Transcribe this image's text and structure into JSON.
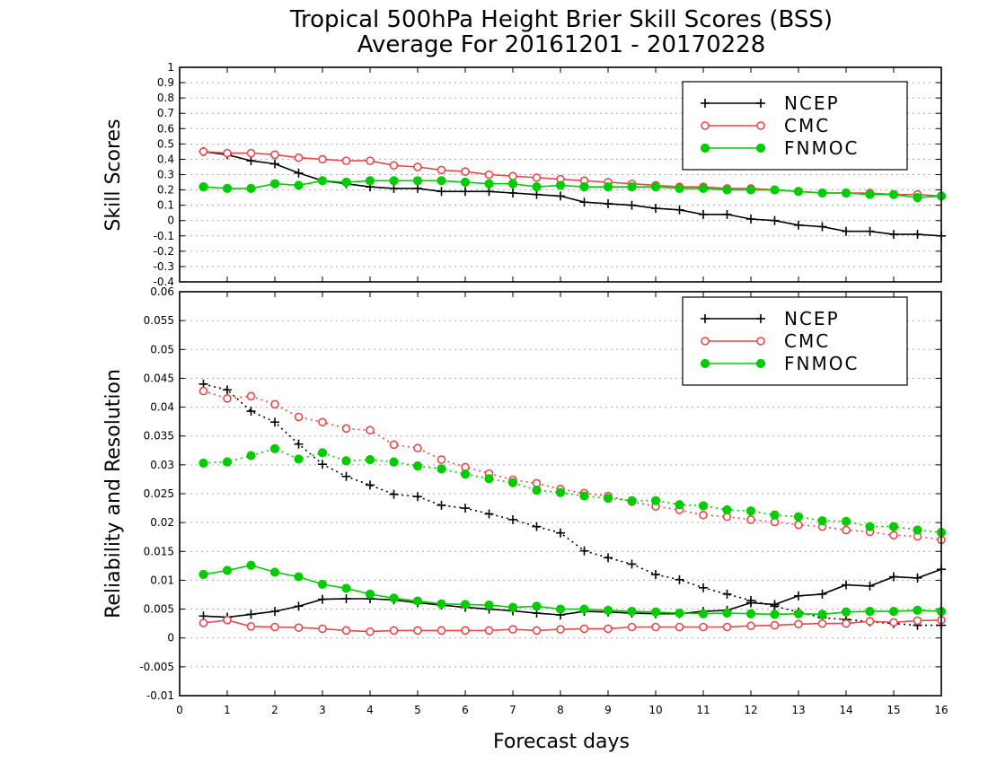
{
  "title_line1": "Tropical 500hPa Height Brier Skill Scores (BSS)",
  "title_line2": "Average For 20161201 - 20170228",
  "xlabel": "Forecast days",
  "colors": {
    "NCEP": "#000000",
    "CMC": "#e84848",
    "FNMOC": "#00cc00",
    "grid": "#aaaaaa"
  },
  "chart_data": [
    {
      "type": "line",
      "ylabel": "Skill Scores",
      "xlim": [
        0,
        16
      ],
      "ylim": [
        -0.4,
        1
      ],
      "xticks": [
        0,
        1,
        2,
        3,
        4,
        5,
        6,
        7,
        8,
        9,
        10,
        11,
        12,
        13,
        14,
        15,
        16
      ],
      "yticks": [
        -0.4,
        -0.3,
        -0.2,
        -0.1,
        0,
        0.1,
        0.2,
        0.3,
        0.4,
        0.5,
        0.6,
        0.7,
        0.8,
        0.9,
        1
      ],
      "ytick_labels": [
        "-0.4",
        "-0.3",
        "-0.2",
        "-0.1",
        "0",
        "0.1",
        "0.2",
        "0.3",
        "0.4",
        "0.5",
        "0.6",
        "0.7",
        "0.8",
        "0.9",
        "1"
      ],
      "grid": "horizontal dotted",
      "legend": {
        "position": "top-right",
        "entries": [
          "NCEP",
          "CMC",
          "FNMOC"
        ]
      },
      "x": [
        0.5,
        1,
        1.5,
        2,
        2.5,
        3,
        3.5,
        4,
        4.5,
        5,
        5.5,
        6,
        6.5,
        7,
        7.5,
        8,
        8.5,
        9,
        9.5,
        10,
        10.5,
        11,
        11.5,
        12,
        12.5,
        13,
        13.5,
        14,
        14.5,
        15,
        15.5,
        16
      ],
      "series": [
        {
          "name": "NCEP",
          "marker": "plus",
          "style": "solid",
          "values": [
            0.45,
            0.43,
            0.39,
            0.37,
            0.31,
            0.26,
            0.24,
            0.22,
            0.21,
            0.21,
            0.19,
            0.19,
            0.19,
            0.18,
            0.17,
            0.16,
            0.12,
            0.11,
            0.1,
            0.08,
            0.07,
            0.04,
            0.04,
            0.01,
            0.0,
            -0.03,
            -0.04,
            -0.07,
            -0.07,
            -0.09,
            -0.09,
            -0.1
          ]
        },
        {
          "name": "CMC",
          "marker": "open-circle",
          "style": "solid",
          "values": [
            0.45,
            0.44,
            0.44,
            0.43,
            0.41,
            0.4,
            0.39,
            0.39,
            0.36,
            0.35,
            0.33,
            0.32,
            0.3,
            0.29,
            0.28,
            0.27,
            0.26,
            0.25,
            0.24,
            0.23,
            0.22,
            0.22,
            0.21,
            0.21,
            0.2,
            0.19,
            0.18,
            0.18,
            0.18,
            0.17,
            0.17,
            0.16
          ]
        },
        {
          "name": "FNMOC",
          "marker": "filled-circle",
          "style": "solid",
          "values": [
            0.22,
            0.21,
            0.21,
            0.24,
            0.23,
            0.26,
            0.25,
            0.26,
            0.26,
            0.26,
            0.26,
            0.25,
            0.24,
            0.24,
            0.22,
            0.23,
            0.22,
            0.22,
            0.22,
            0.22,
            0.21,
            0.21,
            0.2,
            0.2,
            0.2,
            0.19,
            0.18,
            0.18,
            0.17,
            0.17,
            0.15,
            0.16
          ]
        }
      ]
    },
    {
      "type": "line",
      "ylabel": "Reliability and Resolution",
      "xlim": [
        0,
        16
      ],
      "ylim": [
        -0.01,
        0.06
      ],
      "xticks": [
        0,
        1,
        2,
        3,
        4,
        5,
        6,
        7,
        8,
        9,
        10,
        11,
        12,
        13,
        14,
        15,
        16
      ],
      "yticks": [
        -0.01,
        -0.005,
        0,
        0.005,
        0.01,
        0.015,
        0.02,
        0.025,
        0.03,
        0.035,
        0.04,
        0.045,
        0.05,
        0.055,
        0.06
      ],
      "ytick_labels": [
        "-0.01",
        "-0.005",
        "0",
        "0.005",
        "0.01",
        "0.015",
        "0.02",
        "0.025",
        "0.03",
        "0.035",
        "0.04",
        "0.045",
        "0.05",
        "0.055",
        "0.06"
      ],
      "xtick_labels": [
        "0",
        "1",
        "2",
        "3",
        "4",
        "5",
        "6",
        "7",
        "8",
        "9",
        "10",
        "11",
        "12",
        "13",
        "14",
        "15",
        "16"
      ],
      "grid": "horizontal dotted",
      "legend": {
        "position": "top-right",
        "entries": [
          "NCEP",
          "CMC",
          "FNMOC"
        ]
      },
      "x": [
        0.5,
        1,
        1.5,
        2,
        2.5,
        3,
        3.5,
        4,
        4.5,
        5,
        5.5,
        6,
        6.5,
        7,
        7.5,
        8,
        8.5,
        9,
        9.5,
        10,
        10.5,
        11,
        11.5,
        12,
        12.5,
        13,
        13.5,
        14,
        14.5,
        15,
        15.5,
        16
      ],
      "series": [
        {
          "name": "NCEP",
          "marker": "plus",
          "style": "dotted",
          "values": [
            0.044,
            0.043,
            0.0393,
            0.0374,
            0.0336,
            0.0301,
            0.028,
            0.0265,
            0.0249,
            0.0245,
            0.023,
            0.0225,
            0.0215,
            0.0205,
            0.0193,
            0.0182,
            0.0151,
            0.0139,
            0.0128,
            0.011,
            0.0101,
            0.0087,
            0.0076,
            0.0065,
            0.0055,
            0.0045,
            0.0035,
            0.0032,
            0.0028,
            0.0025,
            0.0022,
            0.0022
          ]
        },
        {
          "name": "NCEP",
          "marker": "plus",
          "style": "solid",
          "values": [
            0.0038,
            0.0036,
            0.0041,
            0.0046,
            0.0055,
            0.0067,
            0.0068,
            0.0068,
            0.0066,
            0.0061,
            0.0057,
            0.0053,
            0.005,
            0.0047,
            0.0043,
            0.004,
            0.0046,
            0.0045,
            0.0043,
            0.0042,
            0.0042,
            0.0046,
            0.0048,
            0.0061,
            0.0058,
            0.0073,
            0.0076,
            0.0092,
            0.009,
            0.0106,
            0.0104,
            0.0119
          ]
        },
        {
          "name": "CMC",
          "marker": "open-circle",
          "style": "dotted",
          "values": [
            0.0428,
            0.0415,
            0.0419,
            0.0405,
            0.0383,
            0.0374,
            0.0363,
            0.036,
            0.0335,
            0.0329,
            0.0309,
            0.0296,
            0.0285,
            0.0274,
            0.0268,
            0.0258,
            0.0251,
            0.0246,
            0.0236,
            0.0228,
            0.0222,
            0.0213,
            0.021,
            0.0205,
            0.0201,
            0.0196,
            0.0193,
            0.0187,
            0.0184,
            0.0178,
            0.0176,
            0.017
          ]
        },
        {
          "name": "CMC",
          "marker": "open-circle",
          "style": "solid",
          "values": [
            0.0026,
            0.0031,
            0.002,
            0.0019,
            0.0018,
            0.0016,
            0.0013,
            0.0011,
            0.0013,
            0.0013,
            0.0013,
            0.0013,
            0.0013,
            0.0015,
            0.0013,
            0.0015,
            0.0016,
            0.0016,
            0.0019,
            0.0019,
            0.0019,
            0.0019,
            0.0019,
            0.0021,
            0.0022,
            0.0024,
            0.0025,
            0.0025,
            0.0029,
            0.0027,
            0.003,
            0.0031
          ]
        },
        {
          "name": "FNMOC",
          "marker": "filled-circle",
          "style": "dotted",
          "values": [
            0.0303,
            0.0305,
            0.0316,
            0.0328,
            0.031,
            0.0321,
            0.0307,
            0.0309,
            0.0305,
            0.0298,
            0.0293,
            0.0284,
            0.0276,
            0.0269,
            0.0256,
            0.0252,
            0.0246,
            0.0242,
            0.0238,
            0.0238,
            0.0231,
            0.0229,
            0.0222,
            0.022,
            0.0213,
            0.021,
            0.0203,
            0.0202,
            0.0193,
            0.0193,
            0.0187,
            0.0183
          ]
        },
        {
          "name": "FNMOC",
          "marker": "filled-circle",
          "style": "solid",
          "values": [
            0.011,
            0.0117,
            0.0126,
            0.0114,
            0.0106,
            0.0093,
            0.0086,
            0.0076,
            0.0069,
            0.0064,
            0.0059,
            0.0058,
            0.0057,
            0.0053,
            0.0055,
            0.005,
            0.005,
            0.0048,
            0.0046,
            0.0045,
            0.0043,
            0.0042,
            0.0043,
            0.0042,
            0.0041,
            0.0042,
            0.0041,
            0.0045,
            0.0046,
            0.0046,
            0.0048,
            0.0046
          ]
        }
      ]
    }
  ]
}
